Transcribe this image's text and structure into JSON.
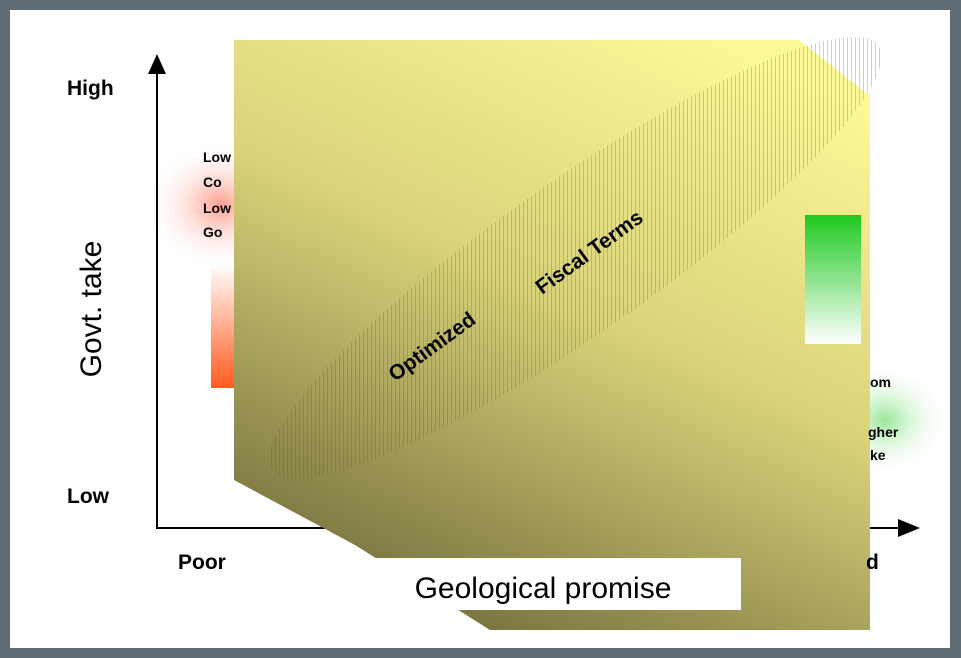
{
  "axes": {
    "y_label": "Govt. take",
    "x_label": "Geological promise",
    "y_high": "High",
    "y_low": "Low",
    "x_poor": "Poor",
    "x_good_fragment": "d"
  },
  "band": {
    "word1": "Optimized",
    "word2": "Fiscal Terms"
  },
  "left_note_fragments": [
    "Low",
    "Co",
    "Low",
    "Go"
  ],
  "right_note_fragments": [
    "om",
    "gher",
    "ke"
  ],
  "colors": {
    "background": "#5f6b75",
    "red_bar": "#ff5a1e",
    "green_bar": "#1ec81e",
    "overlay_light": "#f8f48e",
    "overlay_dark": "#7a7540"
  }
}
